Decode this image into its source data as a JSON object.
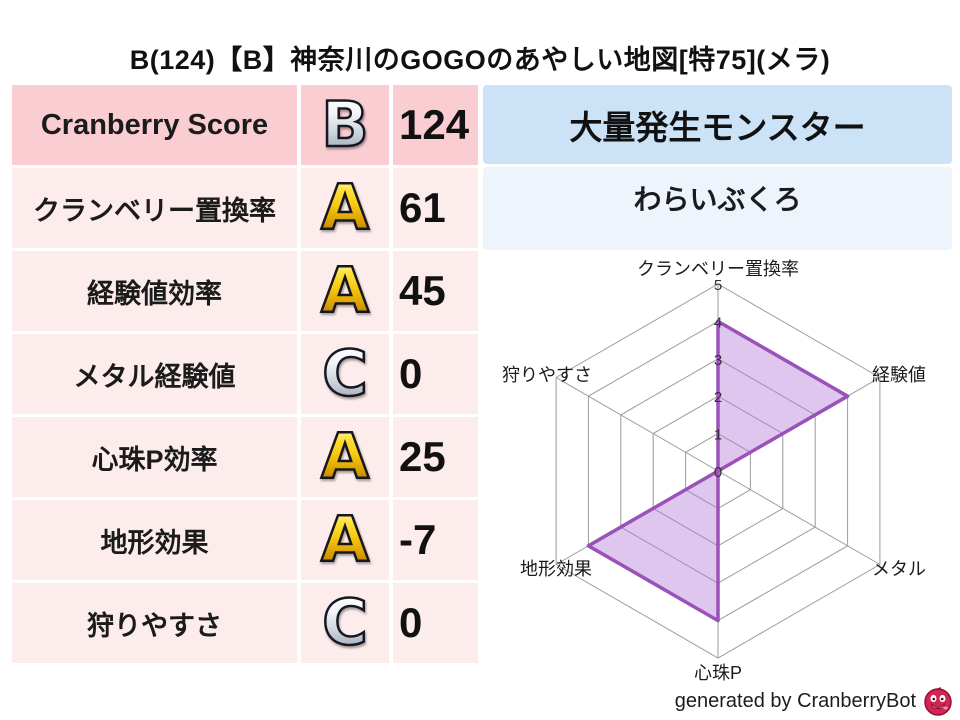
{
  "title": "B(124)【B】神奈川のGOGOのあやしい地図[特75](メラ)",
  "stats": {
    "rows": [
      {
        "label": "Cranberry Score",
        "grade": "B",
        "value": "124"
      },
      {
        "label": "クランベリー置換率",
        "grade": "A",
        "value": "61"
      },
      {
        "label": "経験値効率",
        "grade": "A",
        "value": "45"
      },
      {
        "label": "メタル経験値",
        "grade": "C",
        "value": "0"
      },
      {
        "label": "心珠P効率",
        "grade": "A",
        "value": "25"
      },
      {
        "label": "地形効果",
        "grade": "A",
        "value": "-7"
      },
      {
        "label": "狩りやすさ",
        "grade": "C",
        "value": "0"
      }
    ]
  },
  "monster": {
    "header_label": "大量発生モンスター",
    "name": "わらいぶくろ"
  },
  "chart_data": {
    "type": "radar",
    "axes": [
      "クランベリー置換率",
      "経験値",
      "メタル",
      "心珠P",
      "地形効果",
      "狩りやすさ"
    ],
    "values": [
      4,
      4,
      0,
      4,
      4,
      0
    ],
    "rmin": 0,
    "rmax": 5,
    "tick_labels": [
      "0",
      "1",
      "2",
      "3",
      "4",
      "5"
    ],
    "grid": true,
    "fill_color": "#b278d8",
    "fill_opacity": 0.42,
    "stroke_color": "#9b51ba",
    "grid_color": "#9b9b9b",
    "tick_color": "#333333",
    "label_color": "#1a1a1a"
  },
  "credit": {
    "text": "generated by CranberryBot",
    "icon": "cranberry-icon",
    "berry_color": "#d32552",
    "berry_dark": "#8e1237"
  },
  "colors": {
    "row_highlight_pink": "#f9cdd1",
    "row_pink": "#fdecec",
    "header_blue": "#cbe2f7",
    "panel_blue": "#edf4fc",
    "grade_gold": "#f7c912",
    "grade_silver": "#cdd4de"
  }
}
